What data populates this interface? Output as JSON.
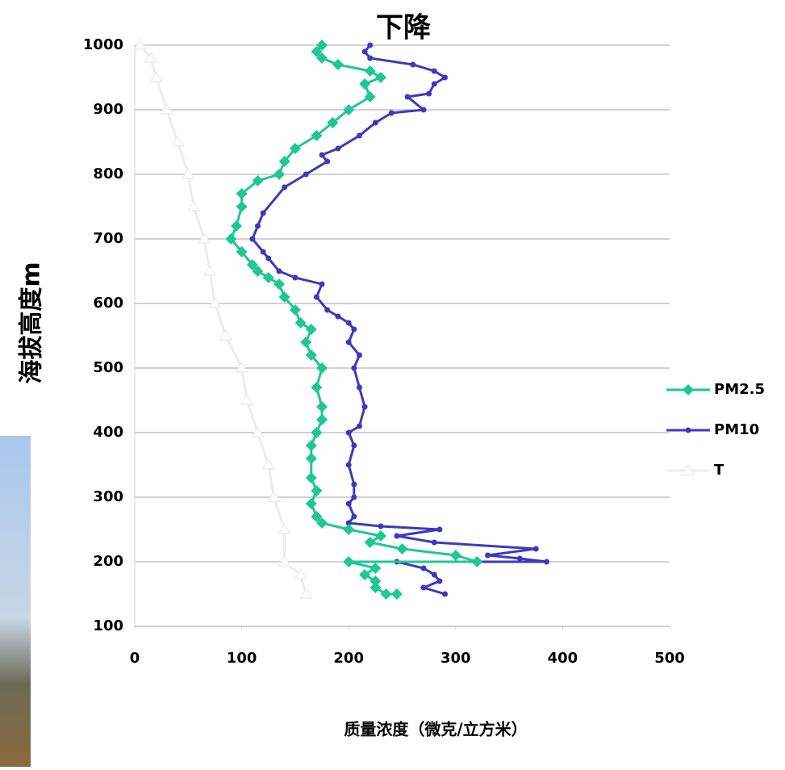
{
  "chart_data": {
    "type": "line",
    "title": "下降",
    "x_label": "质量浓度（微克/立方米）",
    "y_label": "海拔高度m",
    "xlim": [
      0,
      500
    ],
    "xticks": [
      0,
      100,
      200,
      300,
      400,
      500
    ],
    "ylim": [
      100,
      1000
    ],
    "yticks": [
      100,
      200,
      300,
      400,
      500,
      600,
      700,
      800,
      900,
      1000
    ],
    "grid": true,
    "legend": "right",
    "series": [
      {
        "name": "PM2.5",
        "color": "#1fc795",
        "marker": "diamond",
        "x": [
          175,
          170,
          175,
          190,
          220,
          230,
          215,
          220,
          200,
          185,
          170,
          150,
          140,
          135,
          115,
          100,
          100,
          95,
          90,
          100,
          110,
          115,
          125,
          135,
          140,
          150,
          155,
          165,
          160,
          165,
          175,
          170,
          175,
          175,
          170,
          165,
          165,
          165,
          170,
          165,
          170,
          175,
          200,
          230,
          220,
          250,
          300,
          320,
          200,
          225,
          215,
          225,
          225,
          235,
          245
        ],
        "values": [
          1000,
          990,
          980,
          970,
          960,
          950,
          940,
          920,
          900,
          880,
          860,
          840,
          820,
          800,
          790,
          770,
          750,
          720,
          700,
          680,
          660,
          650,
          640,
          630,
          610,
          590,
          570,
          560,
          540,
          520,
          500,
          470,
          440,
          420,
          400,
          380,
          360,
          330,
          310,
          290,
          270,
          260,
          250,
          240,
          230,
          220,
          210,
          200,
          200,
          190,
          180,
          170,
          160,
          150,
          150
        ]
      },
      {
        "name": "PM10",
        "color": "#3a3abf",
        "marker": "circle",
        "x": [
          220,
          215,
          220,
          260,
          280,
          290,
          280,
          275,
          255,
          270,
          240,
          225,
          210,
          190,
          175,
          180,
          160,
          140,
          120,
          115,
          110,
          120,
          125,
          135,
          150,
          175,
          170,
          180,
          190,
          200,
          205,
          200,
          210,
          205,
          210,
          215,
          210,
          200,
          205,
          200,
          205,
          205,
          200,
          205,
          200,
          230,
          285,
          245,
          280,
          375,
          330,
          360,
          385,
          245,
          270,
          280,
          285,
          270,
          290
        ],
        "values": [
          1000,
          990,
          980,
          970,
          960,
          950,
          940,
          925,
          920,
          900,
          895,
          880,
          860,
          840,
          830,
          820,
          800,
          780,
          740,
          720,
          700,
          680,
          670,
          650,
          640,
          630,
          610,
          590,
          580,
          570,
          560,
          540,
          520,
          500,
          470,
          440,
          410,
          400,
          380,
          350,
          320,
          300,
          290,
          270,
          260,
          255,
          250,
          240,
          230,
          220,
          210,
          205,
          200,
          200,
          190,
          180,
          170,
          160,
          150
        ]
      },
      {
        "name": "T",
        "color": "#ececec",
        "marker": "triangle",
        "x": [
          5,
          15,
          20,
          30,
          40,
          50,
          55,
          65,
          70,
          75,
          85,
          100,
          105,
          115,
          125,
          130,
          140,
          140,
          155,
          160
        ],
        "values": [
          1000,
          980,
          950,
          900,
          850,
          800,
          750,
          700,
          650,
          600,
          550,
          500,
          450,
          400,
          350,
          300,
          250,
          200,
          180,
          150
        ]
      }
    ]
  }
}
